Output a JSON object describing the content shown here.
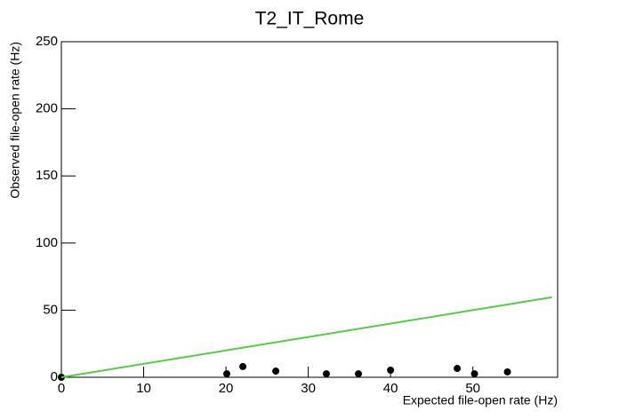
{
  "chart_data": {
    "type": "scatter",
    "title": "T2_IT_Rome",
    "x_label": "Expected file-open rate (Hz)",
    "y_label": "Observed file-open rate (Hz)",
    "xlim": [
      0,
      60.3
    ],
    "ylim": [
      0,
      250
    ],
    "xticks": [
      0,
      10,
      20,
      30,
      40,
      50
    ],
    "yticks": [
      0,
      50,
      100,
      150,
      200,
      250
    ],
    "series": [
      {
        "type": "scatter",
        "color": "#000000",
        "x": [
          0,
          20.1,
          22.05,
          26.05,
          32.2,
          36.1,
          40,
          48.1,
          50.2,
          54.2
        ],
        "values": [
          0,
          2.6,
          8,
          4.6,
          2.6,
          2.6,
          5.3,
          6.6,
          2.6,
          4
        ]
      },
      {
        "type": "line",
        "color": "#5ac84a",
        "x": [
          0,
          59.6
        ],
        "values": [
          0,
          59.6
        ]
      }
    ]
  }
}
